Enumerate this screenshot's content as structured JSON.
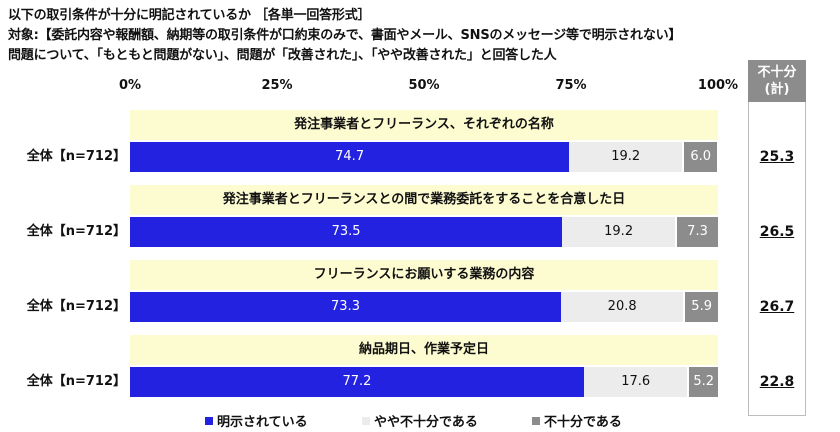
{
  "title_lines": [
    "以下の取引条件が十分に明記されているか ［各単一回答形式］",
    "対象:【委託内容や報酬額、納期等の取引条件が口約束のみで、書面やメール、SNSのメッセージ等で明示されない】",
    "問題について、「もともと問題がない」、問題が「改善された」、「やや改善された」と回答した人"
  ],
  "side_header": "不十分\n(計)",
  "chart_data": {
    "type": "bar",
    "orientation": "horizontal-stacked-100",
    "xlim": [
      0,
      100
    ],
    "x_ticks": [
      "0%",
      "25%",
      "50%",
      "75%",
      "100%"
    ],
    "colors": [
      "#2222e0",
      "#ececec",
      "#8c8c8c"
    ],
    "series": [
      {
        "name": "明示されている",
        "values": [
          74.7,
          73.5,
          73.3,
          77.2
        ]
      },
      {
        "name": "やや不十分である",
        "values": [
          19.2,
          19.2,
          20.8,
          17.6
        ]
      },
      {
        "name": "不十分である",
        "values": [
          6.0,
          7.3,
          5.9,
          5.2
        ]
      }
    ],
    "items": [
      {
        "label": "発注事業者とフリーランス、それぞれの名称",
        "group": "全体【n=712】",
        "labels": [
          "74.7",
          "19.2",
          "6.0"
        ],
        "total": "25.3"
      },
      {
        "label": "発注事業者とフリーランスとの間で業務委託をすることを合意した日",
        "group": "全体【n=712】",
        "labels": [
          "73.5",
          "19.2",
          "7.3"
        ],
        "total": "26.5"
      },
      {
        "label": "フリーランスにお願いする業務の内容",
        "group": "全体【n=712】",
        "labels": [
          "73.3",
          "20.8",
          "5.9"
        ],
        "total": "26.7"
      },
      {
        "label": "納品期日、作業予定日",
        "group": "全体【n=712】",
        "labels": [
          "77.2",
          "17.6",
          "5.2"
        ],
        "total": "22.8"
      }
    ],
    "legend": [
      "明示されている",
      "やや不十分である",
      "不十分である"
    ],
    "legend_position": "bottom"
  }
}
